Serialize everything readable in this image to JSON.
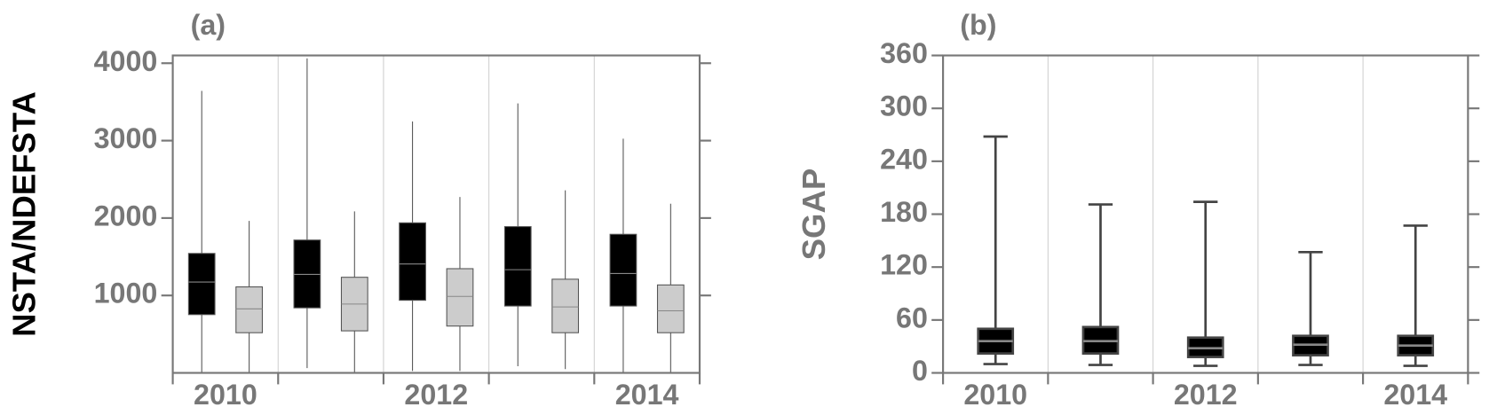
{
  "chart_data": [
    {
      "type": "box",
      "title": "(a)",
      "ylabel": "NSTA/NDEFSTA",
      "ylabel_color": "#000000",
      "categories": [
        "2010",
        null,
        "2012",
        null,
        "2014"
      ],
      "ylim": [
        0,
        4100
      ],
      "yticks": [
        1000,
        2000,
        3000,
        4000
      ],
      "grid": true,
      "whisker_caps": false,
      "series": [
        {
          "color": "#000000",
          "min": [
            10,
            62,
            25,
            86,
            10
          ],
          "q1": [
            753,
            840,
            938,
            864,
            864
          ],
          "median": [
            1173,
            1272,
            1407,
            1333,
            1284
          ],
          "q3": [
            1543,
            1716,
            1938,
            1889,
            1790
          ],
          "max": [
            3642,
            4062,
            3247,
            3481,
            3025
          ]
        },
        {
          "color": "#cccccc",
          "min": [
            10,
            10,
            25,
            49,
            10
          ],
          "q1": [
            519,
            543,
            605,
            519,
            519
          ],
          "median": [
            827,
            889,
            988,
            852,
            802
          ],
          "q3": [
            1111,
            1235,
            1346,
            1210,
            1136
          ],
          "max": [
            1963,
            2086,
            2272,
            2358,
            2185
          ]
        }
      ]
    },
    {
      "type": "box",
      "title": "(b)",
      "ylabel": "SGAP",
      "ylabel_color": "#777777",
      "categories": [
        "2010",
        null,
        "2012",
        null,
        "2014"
      ],
      "ylim": [
        0,
        360
      ],
      "yticks": [
        0,
        60,
        120,
        180,
        240,
        300,
        360
      ],
      "grid": true,
      "whisker_caps": true,
      "series": [
        {
          "color": "#000000",
          "min": [
            10,
            9,
            8,
            9,
            8
          ],
          "q1": [
            22,
            22,
            18,
            20,
            20
          ],
          "median": [
            36,
            36,
            28,
            32,
            31
          ],
          "q3": [
            50,
            52,
            40,
            42,
            42
          ],
          "max": [
            268,
            191,
            194,
            137,
            167
          ]
        }
      ]
    }
  ]
}
